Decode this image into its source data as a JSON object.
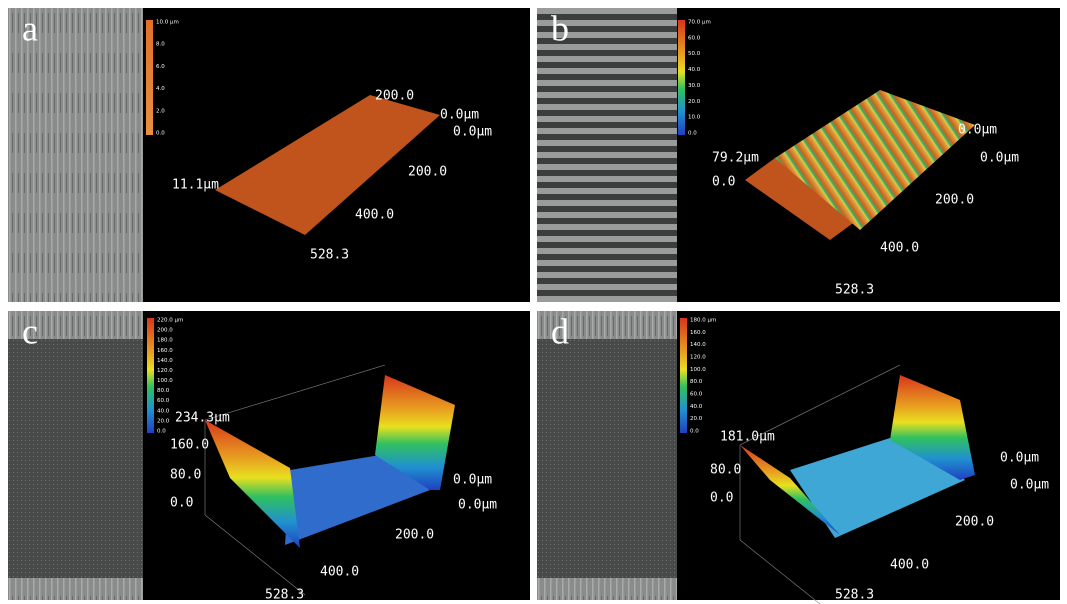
{
  "panels": [
    {
      "label": "a",
      "colorbar_labels": [
        "10.0 µm",
        "8.0",
        "6.0",
        "4.0",
        "2.0",
        "0.0"
      ],
      "axis_labels": [
        "200.0",
        "0.0µm",
        "0.0µm",
        "200.0",
        "400.0",
        "528.3",
        "11.1µm"
      ]
    },
    {
      "label": "b",
      "colorbar_labels": [
        "70.0 µm",
        "60.0",
        "50.0",
        "40.0",
        "30.0",
        "20.0",
        "10.0",
        "0.0"
      ],
      "axis_labels": [
        "79.2µm",
        "0.0",
        "0.0µm",
        "0.0µm",
        "200.0",
        "400.0",
        "528.3"
      ]
    },
    {
      "label": "c",
      "colorbar_labels": [
        "220.0 µm",
        "200.0",
        "180.0",
        "160.0",
        "140.0",
        "120.0",
        "100.0",
        "80.0",
        "60.0",
        "40.0",
        "20.0",
        "0.0"
      ],
      "axis_labels": [
        "234.3µm",
        "160.0",
        "80.0",
        "0.0",
        "0.0µm",
        "0.0µm",
        "200.0",
        "400.0",
        "528.3"
      ]
    },
    {
      "label": "d",
      "colorbar_labels": [
        "180.0 µm",
        "160.0",
        "140.0",
        "120.0",
        "100.0",
        "80.0",
        "60.0",
        "40.0",
        "20.0",
        "0.0"
      ],
      "axis_labels": [
        "181.0µm",
        "80.0",
        "0.0",
        "0.0µm",
        "0.0µm",
        "200.0",
        "400.0",
        "528.3"
      ]
    }
  ]
}
